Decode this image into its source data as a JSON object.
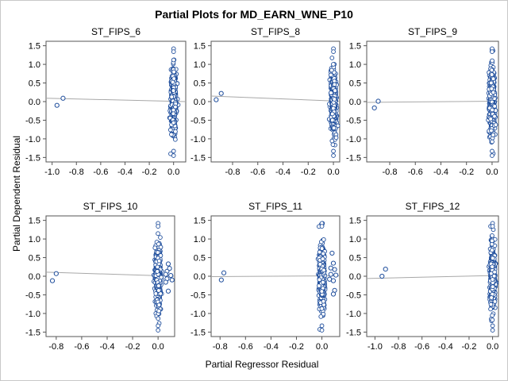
{
  "title": "Partial Plots for MD_EARN_WNE_P10",
  "xlabel": "Partial Regressor Residual",
  "ylabel": "Partial Dependent Residual",
  "colors": {
    "point_stroke": "#1f4e9c",
    "fit_line": "#a8a8a8",
    "axis": "#555555",
    "text": "#000000"
  },
  "chart_data": [
    {
      "type": "scatter",
      "title": "ST_FIPS_6",
      "xlim": [
        -1.05,
        0.1
      ],
      "ylim": [
        -1.62,
        1.62
      ],
      "xticks": [
        "-1.0",
        "-0.8",
        "-0.6",
        "-0.4",
        "-0.2",
        "0.0"
      ],
      "yticks": [
        "1.5",
        "1.0",
        "0.5",
        "0.0",
        "-0.5",
        "-1.0",
        "-1.5"
      ],
      "fit_line": {
        "x": [
          -1.05,
          0.1
        ],
        "y": [
          0.09,
          0.0
        ]
      },
      "outliers": [
        [
          -0.91,
          0.09
        ],
        [
          -0.96,
          -0.1
        ]
      ],
      "cluster": {
        "x_center": 0.0,
        "x_spread": 0.01,
        "y_min": -1.45,
        "y_max": 1.42
      }
    },
    {
      "type": "scatter",
      "title": "ST_FIPS_8",
      "xlim": [
        -0.97,
        0.05
      ],
      "ylim": [
        -1.62,
        1.62
      ],
      "xticks": [
        "-0.8",
        "-0.6",
        "-0.4",
        "-0.2",
        "0.0"
      ],
      "yticks": [
        "1.5",
        "1.0",
        "0.5",
        "0.0",
        "-0.5",
        "-1.0",
        "-1.5"
      ],
      "fit_line": {
        "x": [
          -0.97,
          0.05
        ],
        "y": [
          0.15,
          0.01
        ]
      },
      "outliers": [
        [
          -0.89,
          0.22
        ],
        [
          -0.93,
          0.05
        ]
      ],
      "cluster": {
        "x_center": 0.0,
        "x_spread": 0.01,
        "y_min": -1.45,
        "y_max": 1.42
      }
    },
    {
      "type": "scatter",
      "title": "ST_FIPS_9",
      "xlim": [
        -0.98,
        0.05
      ],
      "ylim": [
        -1.62,
        1.62
      ],
      "xticks": [
        "-0.8",
        "-0.6",
        "-0.4",
        "-0.2",
        "0.0"
      ],
      "yticks": [
        "1.5",
        "1.0",
        "0.5",
        "0.0",
        "-0.5",
        "-1.0",
        "-1.5"
      ],
      "fit_line": {
        "x": [
          -0.98,
          0.05
        ],
        "y": [
          -0.02,
          0.01
        ]
      },
      "outliers": [
        [
          -0.89,
          0.01
        ],
        [
          -0.92,
          -0.17
        ]
      ],
      "cluster": {
        "x_center": 0.0,
        "x_spread": 0.01,
        "y_min": -1.45,
        "y_max": 1.42
      }
    },
    {
      "type": "scatter",
      "title": "ST_FIPS_10",
      "xlim": [
        -0.88,
        0.13
      ],
      "ylim": [
        -1.62,
        1.62
      ],
      "xticks": [
        "-0.8",
        "-0.6",
        "-0.4",
        "-0.2",
        "0.0"
      ],
      "yticks": [
        "1.5",
        "1.0",
        "0.5",
        "0.0",
        "-0.5",
        "-1.0",
        "-1.5"
      ],
      "fit_line": {
        "x": [
          -0.88,
          0.13
        ],
        "y": [
          0.11,
          0.0
        ]
      },
      "outliers": [
        [
          -0.8,
          0.07
        ],
        [
          -0.83,
          -0.12
        ],
        [
          0.08,
          0.33
        ],
        [
          0.09,
          0.21
        ],
        [
          0.07,
          0.13
        ],
        [
          0.06,
          0.05
        ],
        [
          0.1,
          0.02
        ],
        [
          0.07,
          -0.07
        ],
        [
          0.11,
          -0.1
        ],
        [
          0.06,
          -0.16
        ],
        [
          0.08,
          -0.4
        ]
      ],
      "cluster": {
        "x_center": 0.0,
        "x_spread": 0.01,
        "y_min": -1.45,
        "y_max": 1.42
      }
    },
    {
      "type": "scatter",
      "title": "ST_FIPS_11",
      "xlim": [
        -0.87,
        0.14
      ],
      "ylim": [
        -1.62,
        1.62
      ],
      "xticks": [
        "-0.8",
        "-0.6",
        "-0.4",
        "-0.2",
        "0.0"
      ],
      "yticks": [
        "1.5",
        "1.0",
        "0.5",
        "0.0",
        "-0.5",
        "-1.0",
        "-1.5"
      ],
      "fit_line": {
        "x": [
          -0.87,
          0.14
        ],
        "y": [
          -0.01,
          0.01
        ]
      },
      "outliers": [
        [
          -0.77,
          0.09
        ],
        [
          -0.79,
          -0.1
        ],
        [
          0.08,
          0.62
        ],
        [
          0.09,
          0.35
        ],
        [
          0.07,
          0.22
        ],
        [
          0.1,
          0.18
        ],
        [
          0.07,
          0.05
        ],
        [
          0.11,
          0.03
        ],
        [
          0.06,
          -0.08
        ],
        [
          0.09,
          -0.12
        ],
        [
          0.1,
          -0.38
        ],
        [
          0.09,
          -0.48
        ]
      ],
      "cluster": {
        "x_center": 0.0,
        "x_spread": 0.01,
        "y_min": -1.45,
        "y_max": 1.42
      }
    },
    {
      "type": "scatter",
      "title": "ST_FIPS_12",
      "xlim": [
        -1.07,
        0.05
      ],
      "ylim": [
        -1.62,
        1.62
      ],
      "xticks": [
        "-1.0",
        "-0.8",
        "-0.6",
        "-0.4",
        "-0.2",
        "0.0"
      ],
      "yticks": [
        "1.5",
        "1.0",
        "0.5",
        "0.0",
        "-0.5",
        "-1.0",
        "-1.5"
      ],
      "fit_line": {
        "x": [
          -1.07,
          0.05
        ],
        "y": [
          -0.06,
          0.02
        ]
      },
      "outliers": [
        [
          -0.91,
          0.19
        ],
        [
          -0.94,
          0.0
        ]
      ],
      "cluster": {
        "x_center": 0.0,
        "x_spread": 0.01,
        "y_min": -1.45,
        "y_max": 1.42
      }
    }
  ]
}
